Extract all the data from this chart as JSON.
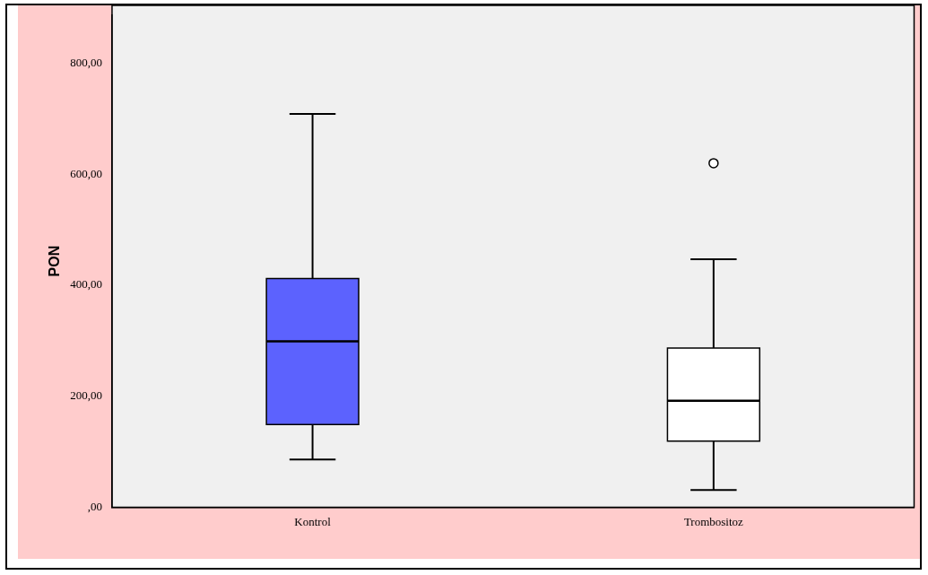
{
  "chart_data": {
    "type": "box",
    "ylabel": "PON",
    "categories": [
      "Kontrol",
      "Trombositoz"
    ],
    "boxes": [
      {
        "low": 86,
        "q1": 149,
        "median": 299,
        "q3": 412,
        "high": 709
      },
      {
        "low": 31,
        "q1": 119,
        "median": 192,
        "q3": 287,
        "high": 447,
        "outliers": [
          620
        ]
      }
    ],
    "colors": [
      "#5c62fe",
      "#ffffff"
    ],
    "ylim": [
      0,
      887
    ],
    "yticks": [
      {
        "value": 0,
        "label": ",00"
      },
      {
        "value": 200,
        "label": "200,00"
      },
      {
        "value": 400,
        "label": "400,00"
      },
      {
        "value": 600,
        "label": "600,00"
      },
      {
        "value": 800,
        "label": "800,00"
      }
    ],
    "grid": false,
    "legend": false
  }
}
